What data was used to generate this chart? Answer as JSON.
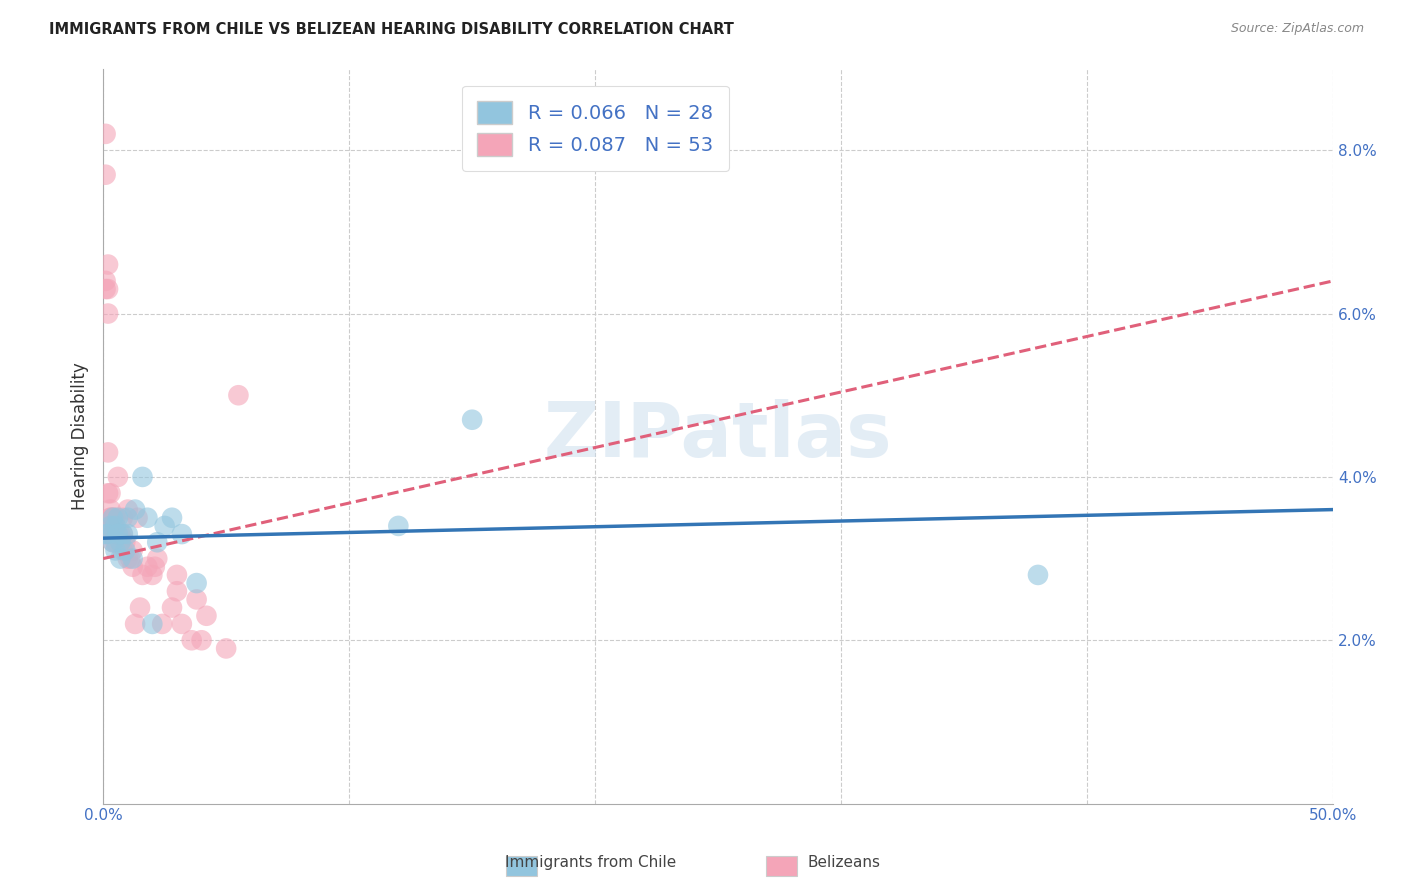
{
  "title": "IMMIGRANTS FROM CHILE VS BELIZEAN HEARING DISABILITY CORRELATION CHART",
  "source": "Source: ZipAtlas.com",
  "ylabel": "Hearing Disability",
  "xlim": [
    0.0,
    0.5
  ],
  "ylim": [
    0.0,
    0.09
  ],
  "xticks": [
    0.0,
    0.1,
    0.2,
    0.3,
    0.4,
    0.5
  ],
  "xtick_labels": [
    "0.0%",
    "",
    "",
    "",
    "",
    "50.0%"
  ],
  "yticks": [
    0.02,
    0.04,
    0.06,
    0.08
  ],
  "ytick_labels": [
    "2.0%",
    "4.0%",
    "6.0%",
    "8.0%"
  ],
  "legend_labels": [
    "Immigrants from Chile",
    "Belizeans"
  ],
  "legend_r": [
    0.066,
    0.087
  ],
  "legend_n": [
    28,
    53
  ],
  "blue_color": "#92c5de",
  "pink_color": "#f4a5b8",
  "blue_line_color": "#3375b5",
  "pink_line_color": "#e0607a",
  "watermark_text": "ZIPatlas",
  "chile_line_x0": 0.0,
  "chile_line_x1": 0.5,
  "chile_line_y0": 0.0325,
  "chile_line_y1": 0.036,
  "belize_line_x0": 0.0,
  "belize_line_x1": 0.5,
  "belize_line_y0": 0.03,
  "belize_line_y1": 0.064,
  "chile_x": [
    0.001,
    0.002,
    0.003,
    0.004,
    0.004,
    0.005,
    0.005,
    0.006,
    0.006,
    0.007,
    0.007,
    0.008,
    0.009,
    0.01,
    0.01,
    0.012,
    0.013,
    0.016,
    0.018,
    0.02,
    0.022,
    0.025,
    0.028,
    0.032,
    0.038,
    0.12,
    0.15,
    0.38
  ],
  "chile_y": [
    0.033,
    0.033,
    0.034,
    0.032,
    0.035,
    0.031,
    0.034,
    0.035,
    0.033,
    0.032,
    0.03,
    0.033,
    0.031,
    0.035,
    0.033,
    0.03,
    0.036,
    0.04,
    0.035,
    0.022,
    0.032,
    0.034,
    0.035,
    0.033,
    0.027,
    0.034,
    0.047,
    0.028
  ],
  "belize_x": [
    0.001,
    0.001,
    0.001,
    0.001,
    0.002,
    0.002,
    0.002,
    0.002,
    0.002,
    0.003,
    0.003,
    0.003,
    0.003,
    0.003,
    0.004,
    0.004,
    0.004,
    0.004,
    0.005,
    0.005,
    0.005,
    0.006,
    0.006,
    0.007,
    0.007,
    0.008,
    0.008,
    0.008,
    0.009,
    0.01,
    0.01,
    0.011,
    0.012,
    0.012,
    0.013,
    0.014,
    0.015,
    0.016,
    0.018,
    0.02,
    0.021,
    0.022,
    0.024,
    0.028,
    0.03,
    0.03,
    0.032,
    0.036,
    0.038,
    0.04,
    0.042,
    0.05,
    0.055
  ],
  "belize_y": [
    0.082,
    0.077,
    0.064,
    0.063,
    0.066,
    0.063,
    0.06,
    0.043,
    0.038,
    0.038,
    0.036,
    0.035,
    0.035,
    0.033,
    0.035,
    0.034,
    0.033,
    0.032,
    0.035,
    0.033,
    0.032,
    0.04,
    0.033,
    0.033,
    0.032,
    0.035,
    0.033,
    0.031,
    0.032,
    0.036,
    0.03,
    0.03,
    0.031,
    0.029,
    0.022,
    0.035,
    0.024,
    0.028,
    0.029,
    0.028,
    0.029,
    0.03,
    0.022,
    0.024,
    0.028,
    0.026,
    0.022,
    0.02,
    0.025,
    0.02,
    0.023,
    0.019,
    0.05
  ]
}
